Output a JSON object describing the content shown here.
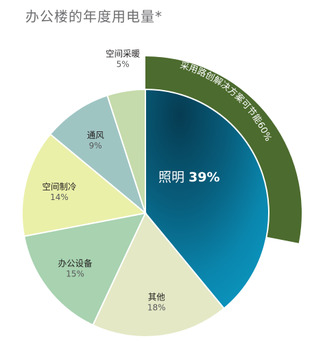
{
  "chart_data": {
    "type": "pie",
    "title": "办公楼的年度用电量*",
    "start_angle_deg": 90,
    "direction": "clockwise",
    "slices": [
      {
        "label": "照明",
        "value": 39,
        "value_label": "39%",
        "color": "#0a86ad",
        "exploded": true
      },
      {
        "label": "其他",
        "value": 18,
        "value_label": "18%",
        "color": "#e4e8c5",
        "exploded": false
      },
      {
        "label": "办公设备",
        "value": 15,
        "value_label": "15%",
        "color": "#a8d2b0",
        "exploded": false
      },
      {
        "label": "空间制冷",
        "value": 14,
        "value_label": "14%",
        "color": "#eaf0a8",
        "exploded": false
      },
      {
        "label": "通风",
        "value": 9,
        "value_label": "9%",
        "color": "#9fc5c3",
        "exploded": false
      },
      {
        "label": "空间采暖",
        "value": 5,
        "value_label": "5%",
        "color": "#c5dbab",
        "exploded": false
      }
    ],
    "annotation": {
      "text": "采用路创解决方案可节能60%",
      "color": "#4c6b2e",
      "highlights_slice": "照明"
    }
  }
}
